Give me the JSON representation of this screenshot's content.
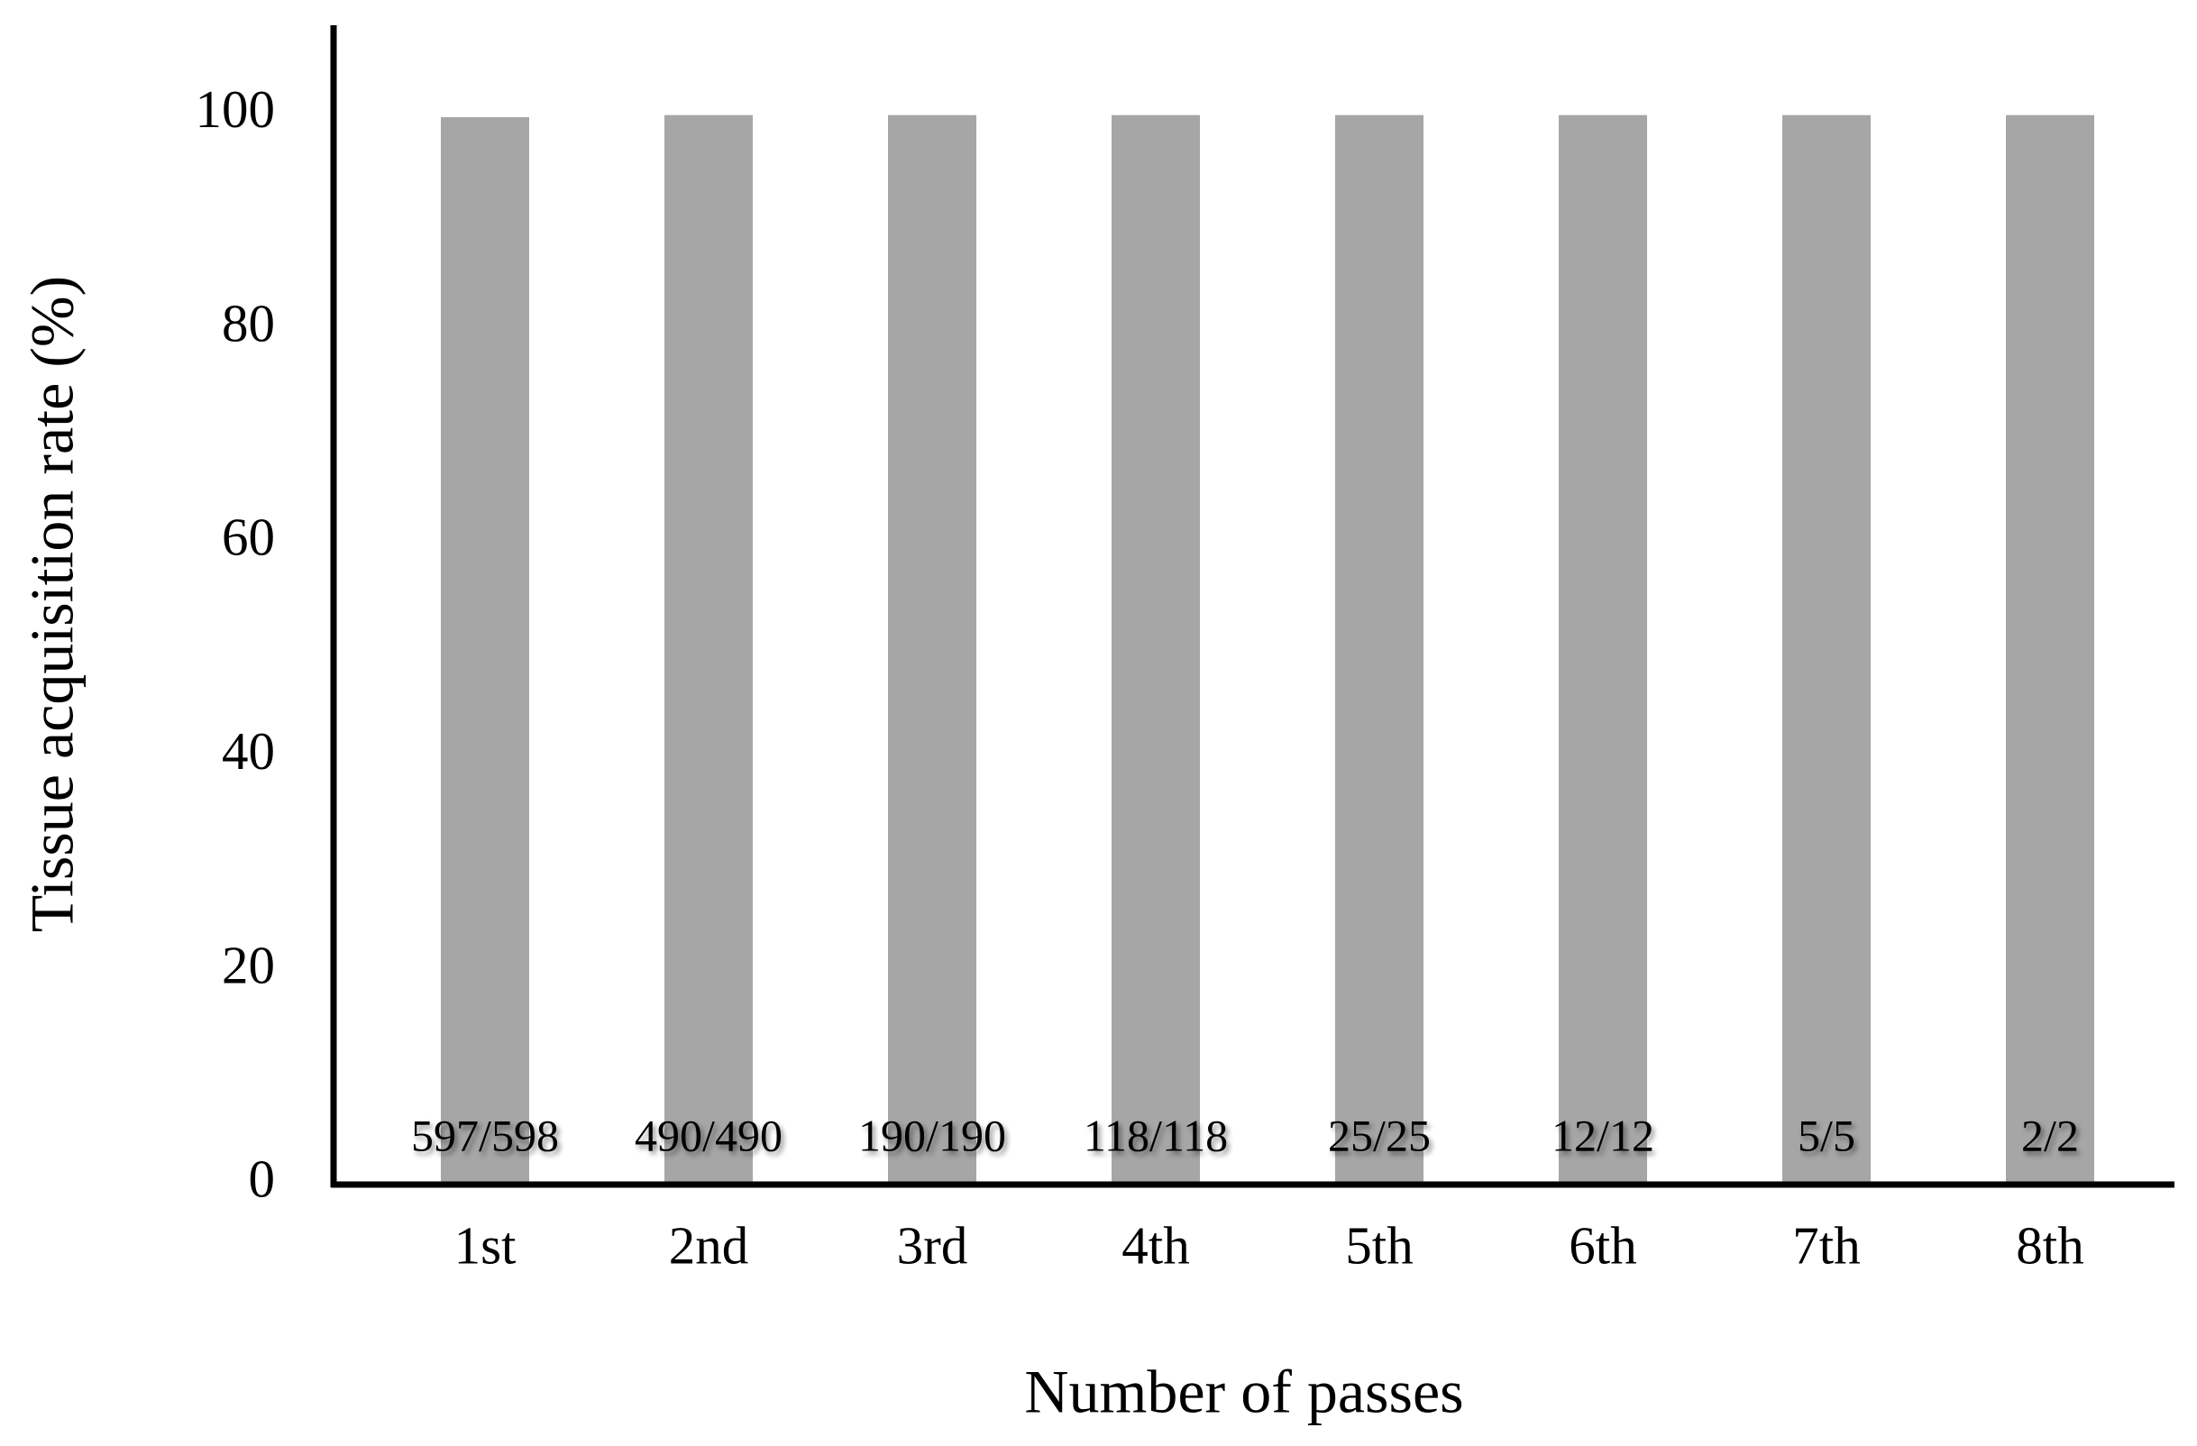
{
  "chart_data": {
    "type": "bar",
    "x_label": "Number of passes",
    "y_label": "Tissue acquisition rate (%)",
    "categories": [
      "1st",
      "2nd",
      "3rd",
      "4th",
      "5th",
      "6th",
      "7th",
      "8th"
    ],
    "values": [
      99.8,
      100,
      100,
      100,
      100,
      100,
      100,
      100
    ],
    "value_labels": [
      "597/598",
      "490/490",
      "190/190",
      "118/118",
      "25/25",
      "12/12",
      "5/5",
      "2/2"
    ],
    "color": "#a6a6a6",
    "ylim": [
      0,
      108.4
    ],
    "yticks": [
      0,
      20,
      40,
      60,
      80,
      100
    ],
    "grid": false
  }
}
